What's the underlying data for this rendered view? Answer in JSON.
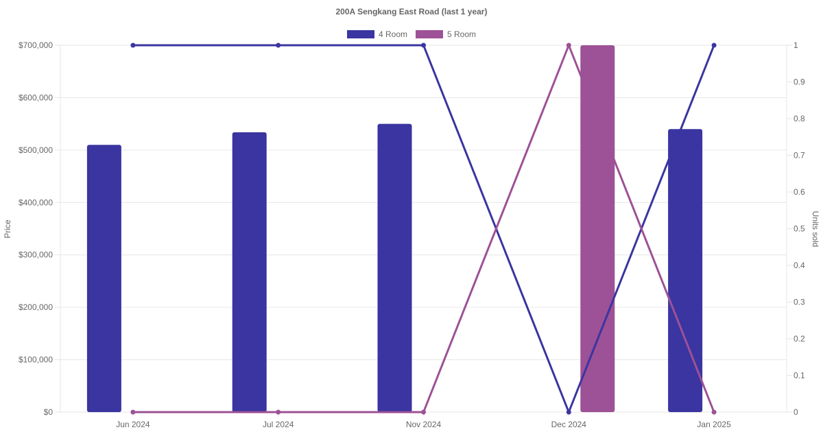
{
  "chart_data": {
    "type": "bar",
    "title": "200A Sengkang East Road (last 1 year)",
    "categories": [
      "Jun 2024",
      "Jul 2024",
      "Nov 2024",
      "Dec 2024",
      "Jan 2025"
    ],
    "y_left": {
      "label": "Price",
      "min": 0,
      "max": 700000,
      "ticks": [
        0,
        100000,
        200000,
        300000,
        400000,
        500000,
        600000,
        700000
      ],
      "tick_labels": [
        "$0",
        "$100,000",
        "$200,000",
        "$300,000",
        "$400,000",
        "$500,000",
        "$600,000",
        "$700,000"
      ]
    },
    "y_right": {
      "label": "Units sold",
      "min": 0,
      "max": 1,
      "ticks": [
        0,
        0.1,
        0.2,
        0.3,
        0.4,
        0.5,
        0.6,
        0.7,
        0.8,
        0.9,
        1
      ],
      "tick_labels": [
        "0",
        "0.1",
        "0.2",
        "0.3",
        "0.4",
        "0.5",
        "0.6",
        "0.7",
        "0.8",
        "0.9",
        "1"
      ]
    },
    "legend": {
      "placement": "top-center",
      "entries": [
        {
          "name": "4 Room",
          "color": "#3a35a0"
        },
        {
          "name": "5 Room",
          "color": "#9d5196"
        }
      ]
    },
    "bar_series": [
      {
        "name": "4 Room",
        "color": "#3a35a0",
        "values": [
          510000,
          534000,
          550000,
          null,
          540000
        ]
      },
      {
        "name": "5 Room",
        "color": "#9d5196",
        "values": [
          null,
          null,
          null,
          700000,
          null
        ]
      }
    ],
    "line_series": [
      {
        "name": "4 Room",
        "color": "#3a35a0",
        "axis": "right",
        "values": [
          1,
          1,
          1,
          0,
          1
        ]
      },
      {
        "name": "5 Room",
        "color": "#9d5196",
        "axis": "right",
        "values": [
          0,
          0,
          0,
          1,
          0
        ]
      }
    ],
    "grid": true
  }
}
